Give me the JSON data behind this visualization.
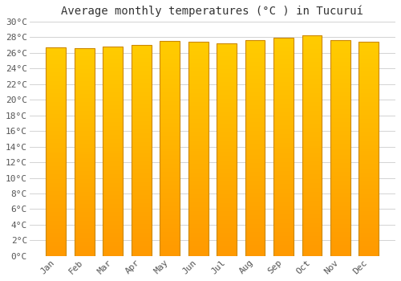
{
  "title": "Average monthly temperatures (°C ) in Tucuruí",
  "months": [
    "Jan",
    "Feb",
    "Mar",
    "Apr",
    "May",
    "Jun",
    "Jul",
    "Aug",
    "Sep",
    "Oct",
    "Nov",
    "Dec"
  ],
  "temperatures": [
    26.7,
    26.6,
    26.8,
    27.0,
    27.5,
    27.4,
    27.2,
    27.6,
    27.9,
    28.2,
    27.6,
    27.4
  ],
  "bar_color_top": "#FFCC00",
  "bar_color_bottom": "#FF9900",
  "bar_edge_color": "#CC8800",
  "background_color": "#ffffff",
  "plot_bg_color": "#ffffff",
  "grid_color": "#cccccc",
  "ylim": [
    0,
    30
  ],
  "yticks": [
    0,
    2,
    4,
    6,
    8,
    10,
    12,
    14,
    16,
    18,
    20,
    22,
    24,
    26,
    28,
    30
  ],
  "title_fontsize": 10,
  "tick_fontsize": 8,
  "bar_width": 0.7
}
